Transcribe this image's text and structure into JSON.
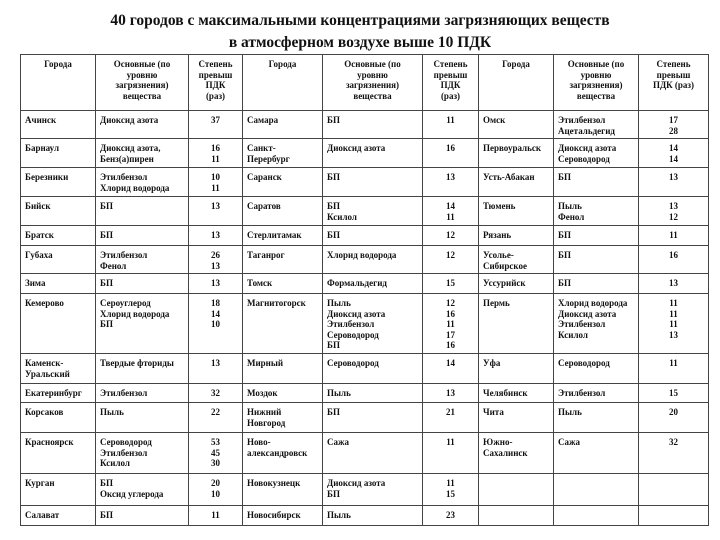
{
  "title": {
    "line1": "40 городов с максимальными концентрациями загрязняющих веществ",
    "line2": "в атмосферном воздухе выше 10 ПДК"
  },
  "headers": [
    "Города",
    "Основные (по\nуровню\nзагрязнения)\nвещества",
    "Степень\nпревыш\nПДК\n(раз)",
    "Города",
    "Основные (по\nуровню\nзагрязнения)\nвещества",
    "Степень\nпревыш\nПДК\n(раз)",
    "Города",
    "Основные (по\nуровню\nзагрязнения)\nвещества",
    "Степень\nпревыш\nПДК (раз)"
  ],
  "rows": [
    [
      [
        "Ачинск",
        "Диоксид азота",
        "37"
      ],
      [
        "Самара",
        "БП",
        "11"
      ],
      [
        "Омск",
        "Этилбензол\nАцетальдегид",
        "17\n28"
      ]
    ],
    [
      [
        "Барнаул",
        "Диоксид азота,\nБенз(а)пирен",
        "16\n11"
      ],
      [
        "Санкт-\nПерербург",
        "Диоксид азота",
        "16"
      ],
      [
        "Первоуральск",
        "Диоксид азота\nСероводород",
        "14\n14"
      ]
    ],
    [
      [
        "Березники",
        "Этилбензол\nХлорид водорода",
        "10\n11"
      ],
      [
        "Саранск",
        "БП",
        "13"
      ],
      [
        "Усть-Абакан",
        "БП",
        "13"
      ]
    ],
    [
      [
        "Бийск",
        "БП",
        "13"
      ],
      [
        "Саратов",
        "БП\nКсилол",
        "14\n11"
      ],
      [
        "Тюмень",
        "Пыль\nФенол",
        "13\n12"
      ]
    ],
    [
      [
        "Братск",
        "БП",
        "13"
      ],
      [
        "Стерлитамак",
        "БП",
        "12"
      ],
      [
        "Рязань",
        "БП",
        "11"
      ]
    ],
    [
      [
        "Губаха",
        "Этилбензол\nФенол",
        "26\n13"
      ],
      [
        "Таганрог",
        "Хлорид водорода",
        "12"
      ],
      [
        "Усолье-\nСибирское",
        "БП",
        "16"
      ]
    ],
    [
      [
        "Зима",
        "БП",
        "13"
      ],
      [
        "Томск",
        "Формальдегид",
        "15"
      ],
      [
        "Уссурийск",
        "БП",
        "13"
      ]
    ],
    [
      [
        "Кемерово",
        "Сероуглерод\nХлорид водорода\nБП",
        "18\n14\n10"
      ],
      [
        "Магнитогорск",
        "Пыль\nДиоксид азота\nЭтилбензол\nСероводород\nБП",
        "12\n16\n11\n17\n16"
      ],
      [
        "Пермь",
        "Хлорид водорода\nДиоксид азота\nЭтилбензол\nКсилол",
        "11\n11\n11\n13"
      ]
    ],
    [
      [
        "Каменск-\nУральский",
        "Твердые фториды",
        "13"
      ],
      [
        "Мирный",
        "Сероводород",
        "14"
      ],
      [
        "Уфа",
        "Сероводород",
        "11"
      ]
    ],
    [
      [
        "Екатеринбург",
        "Этилбензол",
        "32"
      ],
      [
        "Моздок",
        "Пыль",
        "13"
      ],
      [
        "Челябинск",
        "Этилбензол",
        "15"
      ]
    ],
    [
      [
        "Корсаков",
        "Пыль",
        "22"
      ],
      [
        "Нижний\nНовгород",
        "БП",
        "21"
      ],
      [
        "Чита",
        "Пыль",
        "20"
      ]
    ],
    [
      [
        "Красноярск",
        "Сероводород\nЭтилбензол\nКсилол",
        "53\n45\n30"
      ],
      [
        "Ново-\nалександровск",
        "Сажа",
        "11"
      ],
      [
        "Южно-\nСахалинск",
        "Сажа",
        "32"
      ]
    ],
    [
      [
        "Курган",
        "БП\nОксид углерода",
        "20\n10"
      ],
      [
        "Новокузнецк",
        "Диоксид азота\nБП",
        "11\n15"
      ],
      [
        "",
        "",
        ""
      ]
    ],
    [
      [
        "Салават",
        "БП",
        "11"
      ],
      [
        "Новосибирск",
        "Пыль",
        "23"
      ],
      [
        "",
        "",
        ""
      ]
    ]
  ]
}
